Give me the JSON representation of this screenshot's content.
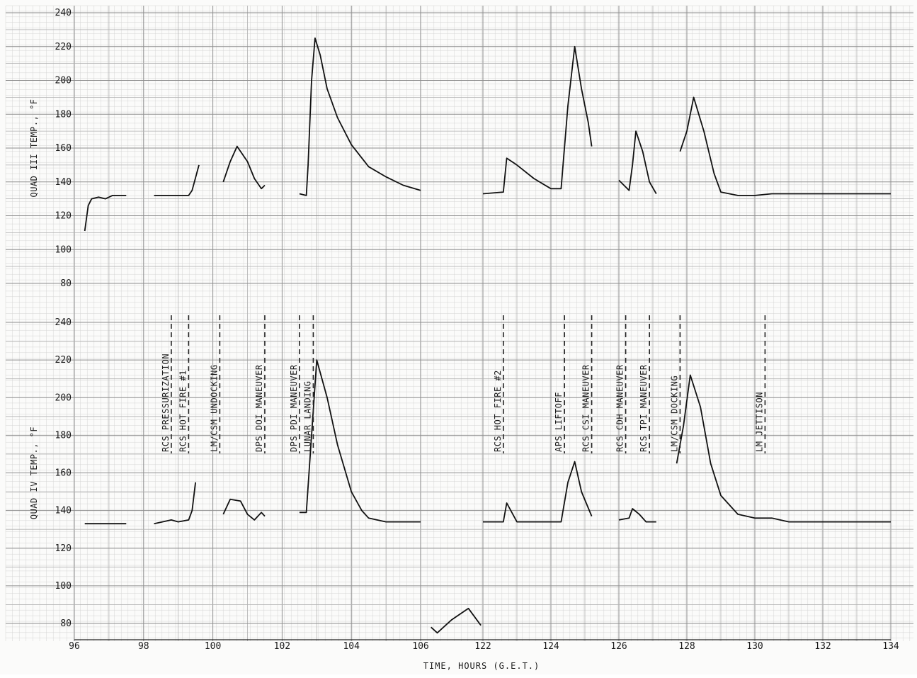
{
  "chart_data": {
    "type": "line",
    "x_axis": {
      "label": "TIME, HOURS (G.E.T.)",
      "ticks": [
        "96",
        "98",
        "100",
        "102",
        "104",
        "106",
        "122",
        "124",
        "126",
        "128",
        "130",
        "132",
        "134"
      ],
      "segments": [
        {
          "from": 96,
          "to": 106
        },
        {
          "from": 122,
          "to": 134
        }
      ]
    },
    "panels": [
      {
        "id": "quad3",
        "ylabel": "QUAD III TEMP., °F",
        "ylim": [
          80,
          240
        ],
        "yticks": [
          "80",
          "100",
          "120",
          "140",
          "160",
          "180",
          "200",
          "220",
          "240"
        ],
        "series": [
          {
            "points": [
              [
                96.3,
                111
              ],
              [
                96.4,
                126
              ],
              [
                96.5,
                130
              ],
              [
                96.7,
                131
              ],
              [
                96.9,
                130
              ],
              [
                97.1,
                132
              ],
              [
                97.5,
                132
              ]
            ]
          },
          {
            "points": [
              [
                98.3,
                132
              ],
              [
                99.0,
                132
              ],
              [
                99.3,
                132
              ],
              [
                99.4,
                135
              ],
              [
                99.6,
                150
              ]
            ]
          },
          {
            "points": [
              [
                100.3,
                140
              ],
              [
                100.5,
                152
              ],
              [
                100.7,
                161
              ],
              [
                101.0,
                152
              ],
              [
                101.2,
                142
              ],
              [
                101.4,
                136
              ],
              [
                101.5,
                138
              ]
            ]
          },
          {
            "points": [
              [
                102.5,
                133
              ],
              [
                102.7,
                132
              ],
              [
                102.75,
                150
              ],
              [
                102.85,
                200
              ],
              [
                102.95,
                225
              ],
              [
                103.1,
                215
              ],
              [
                103.3,
                195
              ],
              [
                103.6,
                178
              ],
              [
                104.0,
                162
              ],
              [
                104.5,
                149
              ],
              [
                105.0,
                143
              ],
              [
                105.5,
                138
              ],
              [
                106.0,
                135
              ]
            ]
          },
          {
            "points": [
              [
                122.0,
                133
              ],
              [
                122.6,
                134
              ],
              [
                122.7,
                154
              ],
              [
                123.0,
                150
              ],
              [
                123.5,
                142
              ],
              [
                124.0,
                136
              ],
              [
                124.3,
                136
              ],
              [
                124.5,
                185
              ],
              [
                124.7,
                220
              ],
              [
                124.9,
                195
              ],
              [
                125.1,
                175
              ],
              [
                125.2,
                161
              ]
            ]
          },
          {
            "points": [
              [
                126.0,
                141
              ],
              [
                126.3,
                135
              ],
              [
                126.4,
                150
              ],
              [
                126.5,
                170
              ],
              [
                126.7,
                158
              ],
              [
                126.9,
                140
              ],
              [
                127.1,
                133
              ]
            ]
          },
          {
            "points": [
              [
                127.8,
                158
              ],
              [
                128.0,
                170
              ],
              [
                128.2,
                190
              ],
              [
                128.5,
                170
              ],
              [
                128.8,
                145
              ],
              [
                129.0,
                134
              ],
              [
                129.5,
                132
              ],
              [
                130.0,
                132
              ],
              [
                130.5,
                133
              ],
              [
                134.0,
                133
              ]
            ]
          }
        ]
      },
      {
        "id": "quad4",
        "ylabel": "QUAD IV TEMP., °F",
        "ylim": [
          80,
          240
        ],
        "yticks": [
          "80",
          "100",
          "120",
          "140",
          "160",
          "180",
          "200",
          "220",
          "240"
        ],
        "series": [
          {
            "points": [
              [
                96.3,
                133
              ],
              [
                97.5,
                133
              ]
            ]
          },
          {
            "points": [
              [
                98.3,
                133
              ],
              [
                98.8,
                135
              ],
              [
                99.0,
                134
              ],
              [
                99.3,
                135
              ],
              [
                99.4,
                140
              ],
              [
                99.5,
                155
              ]
            ]
          },
          {
            "points": [
              [
                100.3,
                138
              ],
              [
                100.5,
                146
              ],
              [
                100.8,
                145
              ],
              [
                101.0,
                138
              ],
              [
                101.2,
                135
              ],
              [
                101.4,
                139
              ],
              [
                101.5,
                137
              ]
            ]
          },
          {
            "points": [
              [
                102.5,
                139
              ],
              [
                102.7,
                139
              ],
              [
                102.85,
                180
              ],
              [
                103.0,
                220
              ],
              [
                103.3,
                200
              ],
              [
                103.6,
                175
              ],
              [
                104.0,
                150
              ],
              [
                104.3,
                140
              ],
              [
                104.5,
                136
              ],
              [
                105.0,
                134
              ],
              [
                106.0,
                134
              ]
            ]
          },
          {
            "points": [
              [
                122.0,
                134
              ],
              [
                122.6,
                134
              ],
              [
                122.7,
                144
              ],
              [
                123.0,
                134
              ],
              [
                124.3,
                134
              ],
              [
                124.5,
                155
              ],
              [
                124.7,
                166
              ],
              [
                124.9,
                150
              ],
              [
                125.2,
                137
              ]
            ]
          },
          {
            "points": [
              [
                126.0,
                135
              ],
              [
                126.3,
                136
              ],
              [
                126.4,
                141
              ],
              [
                126.6,
                138
              ],
              [
                126.8,
                134
              ],
              [
                127.1,
                134
              ]
            ]
          },
          {
            "points": [
              [
                127.7,
                165
              ],
              [
                127.9,
                185
              ],
              [
                128.1,
                212
              ],
              [
                128.4,
                195
              ],
              [
                128.7,
                165
              ],
              [
                129.0,
                148
              ],
              [
                129.5,
                138
              ],
              [
                130.0,
                136
              ],
              [
                130.5,
                136
              ],
              [
                131.0,
                134
              ],
              [
                134.0,
                134
              ]
            ]
          },
          {
            "points": [
              [
                106.5,
                78
              ],
              [
                106.8,
                75
              ],
              [
                107.5,
                82
              ],
              [
                108.3,
                88
              ],
              [
                108.9,
                79
              ]
            ]
          }
        ]
      }
    ],
    "events": [
      {
        "label": "RCS PRESSURIZATION",
        "x": 98.8
      },
      {
        "label": "RCS HOT FIRE #1",
        "x": 99.3
      },
      {
        "label": "LM/CSM UNDOCKING",
        "x": 100.2
      },
      {
        "label": "DPS DOI MANEUVER",
        "x": 101.5
      },
      {
        "label": "DPS PDI MANEUVER",
        "x": 102.5
      },
      {
        "label": "LUNAR LANDING",
        "x": 102.9
      },
      {
        "label": "RCS HOT FIRE #2",
        "x": 122.6
      },
      {
        "label": "APS LIFTOFF",
        "x": 124.4
      },
      {
        "label": "RCS CSI MANEUVER",
        "x": 125.2
      },
      {
        "label": "RCS CDH MANEUVER",
        "x": 126.2
      },
      {
        "label": "RCS TPI MANEUVER",
        "x": 126.9
      },
      {
        "label": "LM/CSM DOCKING",
        "x": 127.8
      },
      {
        "label": "LM JETTISON",
        "x": 130.3
      }
    ],
    "grid": true,
    "legend": "none"
  }
}
